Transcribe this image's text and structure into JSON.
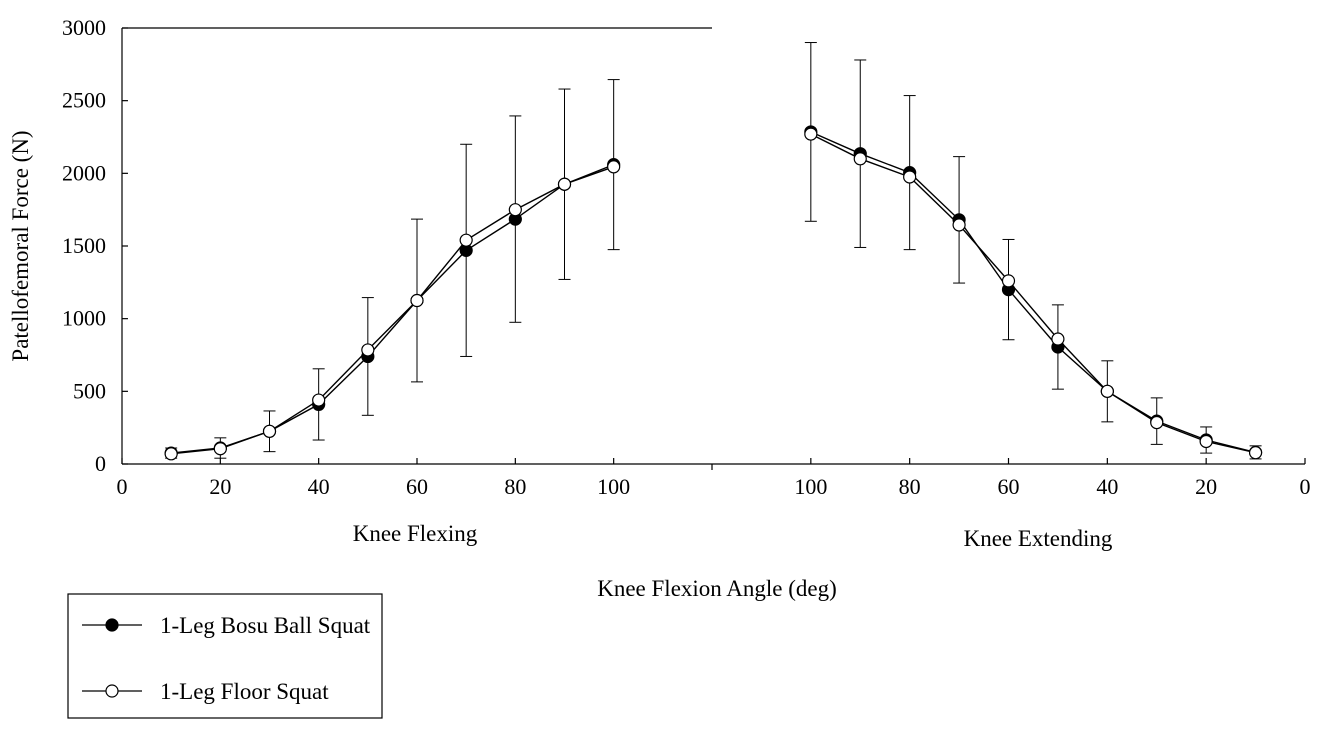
{
  "chart_data": {
    "type": "line",
    "ylabel": "Patellofemoral Force (N)",
    "xlabel": "Knee Flexion Angle (deg)",
    "ylim": [
      0,
      3000
    ],
    "yticks": [
      0,
      500,
      1000,
      1500,
      2000,
      2500,
      3000
    ],
    "grid": false,
    "legend_position": "bottom-left",
    "panels": [
      {
        "label": "Knee Flexing",
        "xlim": [
          0,
          120
        ],
        "xticks": [
          0,
          20,
          40,
          60,
          80,
          100
        ],
        "x": [
          10,
          20,
          30,
          40,
          50,
          60,
          70,
          80,
          90,
          100
        ],
        "error": [
          35,
          70,
          140,
          245,
          405,
          560,
          730,
          710,
          655,
          585
        ]
      },
      {
        "label": "Knee Extending",
        "xlim": [
          120,
          0
        ],
        "xticks": [
          100,
          80,
          60,
          40,
          20,
          0
        ],
        "x": [
          100,
          90,
          80,
          70,
          60,
          50,
          40,
          30,
          20,
          10
        ],
        "error": [
          615,
          645,
          530,
          435,
          345,
          290,
          210,
          160,
          90,
          45
        ]
      }
    ],
    "series": [
      {
        "name": "1-Leg Bosu Ball Squat",
        "marker": "filled-circle",
        "color": "#000000",
        "flexing": [
          75,
          110,
          225,
          410,
          740,
          1125,
          1470,
          1685,
          1925,
          2060
        ],
        "extending": [
          2285,
          2135,
          2005,
          1680,
          1200,
          805,
          500,
          295,
          165,
          80
        ]
      },
      {
        "name": "1-Leg Floor Squat",
        "marker": "open-circle",
        "color": "#000000",
        "flexing": [
          70,
          105,
          225,
          440,
          785,
          1125,
          1540,
          1750,
          1925,
          2045
        ],
        "extending": [
          2270,
          2100,
          1975,
          1645,
          1260,
          860,
          500,
          285,
          155,
          78
        ]
      }
    ]
  }
}
